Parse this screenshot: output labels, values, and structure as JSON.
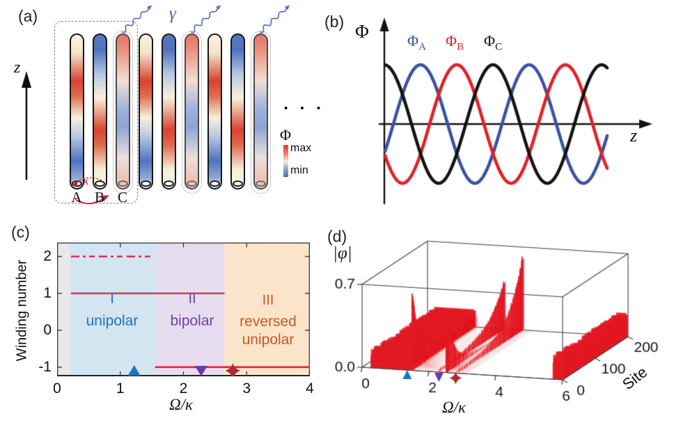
{
  "panel_a": {
    "label": "(a)",
    "z_axis_label": "z",
    "gamma_label": "γ",
    "kappa_label": "κ",
    "tube_bottom_labels": [
      "A",
      "B",
      "C"
    ],
    "ellipsis": "• • •",
    "tubes": [
      "A",
      "B",
      "C",
      "A",
      "B",
      "C",
      "A",
      "B",
      "C"
    ],
    "decay_tube_indices": [
      2,
      5,
      8
    ],
    "decay_arrow_color": "#5a6fbe",
    "tube_gradients": {
      "A": "linear-gradient(180deg,#faf3e0 0%,#f3e3c8 12%,#d84330 30%,#e06b50 40%,#f7f0da 54%,#b9c9e4 66%,#4f74bc 82%,#8fa6d2 93%,#dae3f1 100%)",
      "B": "linear-gradient(180deg,#5578c0 0%,#4f74bc 10%,#b9c9e4 26%,#f7f0da 41%,#d84330 62%,#e06b50 72%,#f7f0da 88%,#faf3e0 100%)",
      "C": "linear-gradient(180deg,#e2776a 0%,#e98a77 8%,#f3ded2 30%,#9fb3da 48%,#8da5d4 60%,#eadfdc 80%,#efc3b8 94%,#f0c8bd 100%)"
    },
    "colorbar": {
      "title": "Φ",
      "max_label": "max",
      "min_label": "min",
      "gradient": "linear-gradient(180deg,#d8402e 0%,#e8705a 22%,#f6ecd8 52%,#8fa6d0 75%,#4a6db8 100%)"
    }
  },
  "panel_b": {
    "label": "(b)",
    "y_axis_label": "Φ",
    "x_axis_label": "z"
  },
  "panel_c": {
    "label": "(c)",
    "y_axis_label": "Winding number",
    "x_axis_label": "Ω/κ"
  },
  "panel_d": {
    "label": "(d)",
    "z_axis_label": "|φ|",
    "x_axis_label": "Ω/κ",
    "site_axis_label": "Site"
  },
  "chart_data": [
    {
      "panel": "b",
      "type": "line",
      "x_label": "z",
      "y_label": "Φ",
      "description": "Three sinusoidal pump profiles shifted by 120 degrees; schematic axes without numeric ticks",
      "amplitude": 1,
      "periods_shown": 2.05,
      "series": [
        {
          "name": "Φ_A",
          "color": "#3a53a4",
          "peak_phase_fraction": 0.333
        },
        {
          "name": "Φ_B",
          "color": "#e32128",
          "peak_phase_fraction": 0.667
        },
        {
          "name": "Φ_C",
          "color": "#141414",
          "peak_phase_fraction": 0.0
        }
      ]
    },
    {
      "panel": "c",
      "type": "line",
      "x_label": "Ω/κ",
      "y_label": "Winding number",
      "xlim": [
        0,
        4
      ],
      "ylim": [
        -1.25,
        2.38
      ],
      "xticks": [
        "0",
        "1",
        "2",
        "3",
        "4"
      ],
      "yticks": [
        "2",
        "1",
        "0",
        "-1"
      ],
      "regions": [
        {
          "x0": 0,
          "x1": 0.2,
          "color": "#e9e8e6",
          "numeral": "",
          "word": "",
          "word2": "",
          "label_color": "#888888"
        },
        {
          "x0": 0.2,
          "x1": 1.55,
          "color": "#d4e5f2",
          "numeral": "I",
          "word": "unipolar",
          "word2": "",
          "label_color": "#1b75bb"
        },
        {
          "x0": 1.55,
          "x1": 2.65,
          "color": "#e7ddf0",
          "numeral": "II",
          "word": "bipolar",
          "word2": "",
          "label_color": "#7040a0"
        },
        {
          "x0": 2.65,
          "x1": 4,
          "color": "#fce4ca",
          "numeral": "III",
          "word": "reversed",
          "word2": "unipolar",
          "label_color": "#c55a24"
        }
      ],
      "lines": [
        {
          "y": 2,
          "x0": 0.22,
          "x1": 1.52,
          "style": "dashed",
          "color": "#d5365a"
        },
        {
          "y": 1,
          "x0": 0.22,
          "x1": 2.65,
          "style": "solid",
          "color": "#d5365a"
        },
        {
          "y": -1,
          "x0": 1.55,
          "x1": 4.0,
          "style": "solid",
          "color": "#e8232a"
        }
      ],
      "markers": [
        {
          "x": 1.22,
          "shape": "triangle-up",
          "color": "#1b75bb"
        },
        {
          "x": 2.28,
          "shape": "triangle-down",
          "color": "#6a3ba6"
        },
        {
          "x": 2.78,
          "shape": "star4",
          "color": "#b02a35"
        }
      ]
    },
    {
      "panel": "d",
      "type": "3d-waterfall",
      "x_label": "Ω/κ",
      "depth_label": "Site",
      "z_label": "|φ|",
      "xlim": [
        0,
        6
      ],
      "depth_lim": [
        0,
        200
      ],
      "zlim": [
        0,
        0.7
      ],
      "xticks": [
        "0",
        "2",
        "4",
        "6"
      ],
      "depth_ticks": [
        "0",
        "100",
        "200"
      ],
      "zticks": [
        "0.0",
        "0.7"
      ],
      "color": "#e3222a",
      "features": [
        {
          "kind": "slab",
          "omega0": 0.25,
          "omega1": 1.45,
          "height": 0.13,
          "note": "extended uniform amplitude, region I"
        },
        {
          "kind": "edge-wall",
          "omega": 1.5,
          "edge": "site-0",
          "peak": 0.55,
          "decay_sites": 22,
          "base": 0.1,
          "fade_omega_to": 2.35
        },
        {
          "kind": "edge-wall",
          "omega": 2.52,
          "edge": "site-0",
          "peak": 0.5,
          "decay_sites": 22,
          "base": 0.02,
          "fade_omega_to": 3.15
        },
        {
          "kind": "edge-wall",
          "omega": 2.3,
          "edge": "site-200",
          "peak": 0.38,
          "decay_sites": 45,
          "base": 0.02,
          "fade_omega_to": 0
        },
        {
          "kind": "edge-wall",
          "omega": 2.85,
          "edge": "site-200",
          "peak": 0.6,
          "decay_sites": 40,
          "base": 0.02,
          "fade_omega_to": 0
        },
        {
          "kind": "slab",
          "omega0": 5.7,
          "omega1": 6.0,
          "height": 0.17,
          "note": "extended band near Ω/κ = 6"
        }
      ],
      "markers": [
        {
          "x": 1.35,
          "shape": "triangle-up",
          "color": "#1b75bb"
        },
        {
          "x": 2.3,
          "shape": "triangle-down",
          "color": "#6a3ba6"
        },
        {
          "x": 2.8,
          "shape": "star4",
          "color": "#b02a35"
        }
      ]
    }
  ]
}
